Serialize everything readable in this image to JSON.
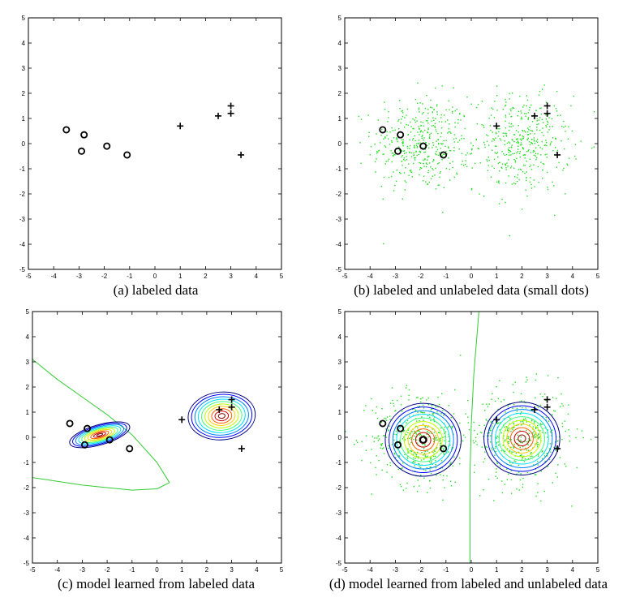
{
  "colors": {
    "axis": "#000000",
    "labeled_marker": "#000000",
    "unlabeled_dots": "#22dd22",
    "decision_boundary": "#33cc33",
    "contour_colormap": [
      "#00007f",
      "#0000ff",
      "#0080ff",
      "#00e0ff",
      "#40ff80",
      "#c0ff00",
      "#ffd000",
      "#ff6000",
      "#d00000",
      "#800000"
    ]
  },
  "captions": {
    "a": "(a) labeled data",
    "b": "(b) labeled and unlabeled data (small dots)",
    "c": "(c) model learned from labeled data",
    "d": "(d) model learned from labeled and unlabeled data"
  },
  "chart_data": [
    {
      "panel": "a",
      "type": "scatter",
      "xlim": [
        -5,
        5
      ],
      "ylim": [
        -5,
        5
      ],
      "xticks": [
        -5,
        -4,
        -3,
        -2,
        -1,
        0,
        1,
        2,
        3,
        4,
        5
      ],
      "yticks": [
        -5,
        -4,
        -3,
        -2,
        -1,
        0,
        1,
        2,
        3,
        4,
        5
      ],
      "grid": false,
      "series": [
        {
          "marker": "circle",
          "x": [
            -3.5,
            -2.8,
            -2.9,
            -1.9,
            -1.1
          ],
          "y": [
            0.55,
            0.35,
            -0.3,
            -0.1,
            -0.45
          ]
        },
        {
          "marker": "plus",
          "x": [
            1.0,
            2.5,
            3.0,
            3.0,
            3.4
          ],
          "y": [
            0.7,
            1.1,
            1.5,
            1.2,
            -0.45
          ]
        }
      ]
    },
    {
      "panel": "b",
      "type": "scatter",
      "xlim": [
        -5,
        5
      ],
      "ylim": [
        -5,
        5
      ],
      "xticks": [
        -5,
        -4,
        -3,
        -2,
        -1,
        0,
        1,
        2,
        3,
        4,
        5
      ],
      "yticks": [
        -5,
        -4,
        -3,
        -2,
        -1,
        0,
        1,
        2,
        3,
        4,
        5
      ],
      "grid": false,
      "series": [
        {
          "marker": "circle",
          "x": [
            -3.5,
            -2.8,
            -2.9,
            -1.9,
            -1.1
          ],
          "y": [
            0.55,
            0.35,
            -0.3,
            -0.1,
            -0.45
          ]
        },
        {
          "marker": "plus",
          "x": [
            1.0,
            2.5,
            3.0,
            3.0,
            3.4
          ],
          "y": [
            0.7,
            1.1,
            1.5,
            1.2,
            -0.45
          ]
        }
      ],
      "unlabeled_clusters": [
        {
          "center": [
            -2.0,
            0.0
          ],
          "spread": [
            0.95,
            0.95
          ],
          "count": 420
        },
        {
          "center": [
            2.0,
            0.0
          ],
          "spread": [
            0.95,
            0.95
          ],
          "count": 420
        }
      ]
    },
    {
      "panel": "c",
      "type": "scatter",
      "xlim": [
        -5,
        5
      ],
      "ylim": [
        -5,
        5
      ],
      "xticks": [
        -5,
        -4,
        -3,
        -2,
        -1,
        0,
        1,
        2,
        3,
        4,
        5
      ],
      "yticks": [
        -5,
        -4,
        -3,
        -2,
        -1,
        0,
        1,
        2,
        3,
        4,
        5
      ],
      "grid": false,
      "series": [
        {
          "marker": "circle",
          "x": [
            -3.5,
            -2.8,
            -2.9,
            -1.9,
            -1.1
          ],
          "y": [
            0.55,
            0.35,
            -0.3,
            -0.1,
            -0.45
          ]
        },
        {
          "marker": "plus",
          "x": [
            1.0,
            2.5,
            3.0,
            3.0,
            3.4
          ],
          "y": [
            0.7,
            1.1,
            1.5,
            1.2,
            -0.45
          ]
        }
      ],
      "gaussians": [
        {
          "center": [
            -2.3,
            0.1
          ],
          "radii": [
            1.25,
            0.4
          ],
          "angle_deg": -16,
          "levels": 10
        },
        {
          "center": [
            2.6,
            0.85
          ],
          "radii": [
            1.35,
            0.95
          ],
          "angle_deg": -5,
          "levels": 10
        }
      ],
      "decision_boundary": [
        [
          -5.0,
          3.1
        ],
        [
          -4.0,
          2.3
        ],
        [
          -3.0,
          1.6
        ],
        [
          -2.0,
          0.9
        ],
        [
          -1.0,
          0.1
        ],
        [
          0.0,
          -1.0
        ],
        [
          0.5,
          -1.8
        ],
        [
          0.0,
          -2.05
        ],
        [
          -1.0,
          -2.1
        ],
        [
          -2.0,
          -2.0
        ],
        [
          -3.0,
          -1.9
        ],
        [
          -4.0,
          -1.75
        ],
        [
          -5.0,
          -1.6
        ]
      ]
    },
    {
      "panel": "d",
      "type": "scatter",
      "xlim": [
        -5,
        5
      ],
      "ylim": [
        -5,
        5
      ],
      "xticks": [
        -5,
        -4,
        -3,
        -2,
        -1,
        0,
        1,
        2,
        3,
        4,
        5
      ],
      "yticks": [
        -5,
        -4,
        -3,
        -2,
        -1,
        0,
        1,
        2,
        3,
        4,
        5
      ],
      "grid": false,
      "series": [
        {
          "marker": "circle",
          "x": [
            -3.5,
            -2.8,
            -2.9,
            -1.9,
            -1.1
          ],
          "y": [
            0.55,
            0.35,
            -0.3,
            -0.1,
            -0.45
          ]
        },
        {
          "marker": "plus",
          "x": [
            1.0,
            2.5,
            3.0,
            3.0,
            3.4
          ],
          "y": [
            0.7,
            1.1,
            1.5,
            1.2,
            -0.45
          ]
        }
      ],
      "unlabeled_clusters": [
        {
          "center": [
            -2.0,
            0.0
          ],
          "spread": [
            0.95,
            0.95
          ],
          "count": 420
        },
        {
          "center": [
            2.0,
            0.0
          ],
          "spread": [
            0.95,
            0.95
          ],
          "count": 420
        }
      ],
      "gaussians": [
        {
          "center": [
            -1.9,
            -0.1
          ],
          "radii": [
            1.5,
            1.45
          ],
          "angle_deg": 0,
          "levels": 10
        },
        {
          "center": [
            2.0,
            -0.05
          ],
          "radii": [
            1.5,
            1.45
          ],
          "angle_deg": 0,
          "levels": 10
        }
      ],
      "decision_boundary": [
        [
          0.3,
          5.0
        ],
        [
          0.1,
          2.5
        ],
        [
          0.0,
          0.5
        ],
        [
          -0.05,
          -1.5
        ],
        [
          -0.05,
          -3.5
        ],
        [
          -0.05,
          -5.0
        ]
      ]
    }
  ]
}
